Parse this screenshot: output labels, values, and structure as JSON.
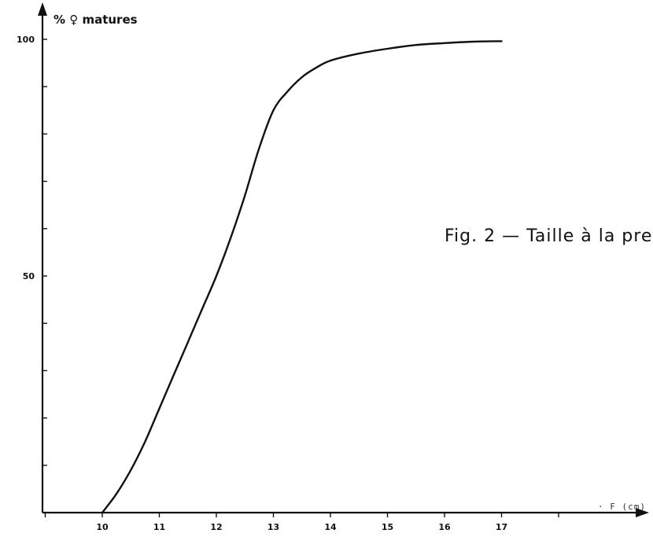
{
  "chart_data": {
    "type": "line",
    "title": "Fig. 2 — Taille à la pre",
    "ylabel": "% ♀ matures",
    "xlabel": "· F (cm)",
    "x_ticks": [
      10,
      11,
      12,
      13,
      14,
      15,
      16,
      17
    ],
    "y_ticks_labeled": [
      50,
      100
    ],
    "xlim": [
      9,
      18
    ],
    "ylim": [
      0,
      100
    ],
    "grid": false,
    "series": [
      {
        "x": [
          10.0,
          10.25,
          10.5,
          10.75,
          11.0,
          11.25,
          11.5,
          11.75,
          12.0,
          12.25,
          12.5,
          12.75,
          13.0,
          13.25,
          13.5,
          13.75,
          14.0,
          14.5,
          15.0,
          15.5,
          16.0,
          16.5,
          17.0
        ],
        "y": [
          0,
          4,
          9,
          15,
          22,
          29,
          36,
          43,
          50,
          58,
          67,
          77,
          85,
          89,
          92,
          94,
          95.5,
          97,
          98,
          98.8,
          99.2,
          99.5,
          99.6
        ],
        "color": "#111111"
      }
    ]
  }
}
